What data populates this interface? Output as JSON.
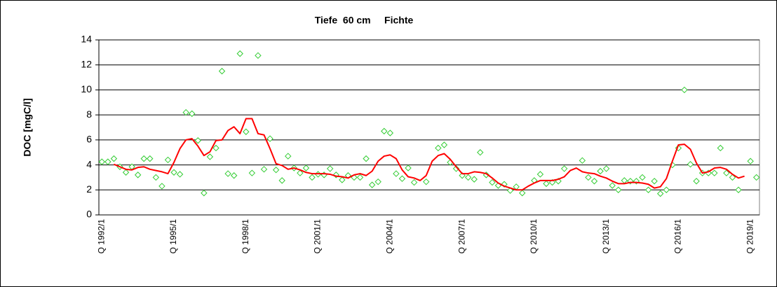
{
  "chart_data": {
    "type": "line",
    "title": "Tiefe  60 cm     Fichte",
    "y_label": "DOC [mgC/l]",
    "categories": [
      "Q 1992/1",
      null,
      null,
      null,
      null,
      null,
      null,
      null,
      null,
      null,
      null,
      null,
      "Q 1995/1",
      null,
      null,
      null,
      null,
      null,
      null,
      null,
      null,
      null,
      null,
      null,
      "Q 1998/1",
      null,
      null,
      null,
      null,
      null,
      null,
      null,
      null,
      null,
      null,
      null,
      "Q 2001/1",
      null,
      null,
      null,
      null,
      null,
      null,
      null,
      null,
      null,
      null,
      null,
      "Q 2004/1",
      null,
      null,
      null,
      null,
      null,
      null,
      null,
      null,
      null,
      null,
      null,
      "Q 2007/1",
      null,
      null,
      null,
      null,
      null,
      null,
      null,
      null,
      null,
      null,
      null,
      "Q 2010/1",
      null,
      null,
      null,
      null,
      null,
      null,
      null,
      null,
      null,
      null,
      null,
      "Q 2013/1",
      null,
      null,
      null,
      null,
      null,
      null,
      null,
      null,
      null,
      null,
      null,
      "Q 2016/1",
      null,
      null,
      null,
      null,
      null,
      null,
      null,
      null,
      null,
      null,
      null,
      "Q 2019/1",
      null
    ],
    "series": [
      {
        "type": "scatter",
        "color": "#33cc33",
        "values": [
          4.25,
          4.25,
          4.5,
          3.85,
          3.4,
          3.85,
          3.2,
          4.5,
          4.5,
          3.0,
          2.3,
          4.4,
          3.4,
          3.25,
          8.2,
          8.1,
          5.95,
          1.75,
          4.65,
          5.35,
          11.5,
          3.3,
          3.15,
          12.9,
          6.65,
          3.35,
          12.75,
          3.65,
          6.1,
          3.6,
          2.75,
          4.7,
          3.75,
          3.35,
          3.75,
          3.0,
          3.25,
          3.2,
          3.7,
          3.2,
          2.8,
          3.15,
          3.0,
          3.0,
          4.5,
          2.4,
          2.65,
          6.7,
          6.55,
          3.3,
          2.9,
          3.75,
          2.6,
          null,
          2.65,
          null,
          5.35,
          5.6,
          4.2,
          3.7,
          3.15,
          3.0,
          2.85,
          5.0,
          3.2,
          2.6,
          2.35,
          2.45,
          1.95,
          2.25,
          1.75,
          null,
          2.75,
          3.25,
          2.5,
          2.6,
          2.7,
          3.7,
          null,
          null,
          4.35,
          3.0,
          2.7,
          3.5,
          3.7,
          2.35,
          2.0,
          2.75,
          2.7,
          2.7,
          3.0,
          2.0,
          2.7,
          1.7,
          2.0,
          4.0,
          5.35,
          10.0,
          4.05,
          2.7,
          3.35,
          3.35,
          3.35,
          5.35,
          3.35,
          3.0,
          2.0,
          null,
          4.3,
          3.0
        ]
      },
      {
        "type": "line",
        "color": "#ff0000",
        "values": [
          null,
          null,
          4.05,
          3.85,
          3.65,
          3.6,
          3.8,
          3.85,
          3.65,
          3.55,
          3.45,
          3.3,
          4.2,
          5.3,
          6.0,
          6.1,
          5.5,
          4.75,
          5.05,
          5.95,
          6.0,
          6.75,
          7.05,
          6.5,
          7.7,
          7.7,
          6.5,
          6.4,
          5.3,
          4.1,
          3.95,
          3.65,
          3.75,
          3.6,
          3.4,
          3.3,
          3.3,
          3.3,
          3.25,
          3.1,
          3.05,
          2.95,
          3.2,
          3.3,
          3.15,
          3.5,
          4.3,
          4.7,
          4.8,
          4.5,
          3.6,
          3.05,
          2.95,
          2.75,
          3.15,
          4.3,
          4.75,
          4.9,
          4.45,
          3.85,
          3.3,
          3.3,
          3.45,
          3.4,
          3.3,
          2.95,
          2.55,
          2.3,
          2.15,
          2.0,
          2.0,
          2.3,
          2.55,
          2.75,
          2.75,
          2.75,
          2.85,
          3.05,
          3.55,
          3.75,
          3.45,
          3.35,
          3.3,
          3.1,
          2.95,
          2.7,
          2.5,
          2.5,
          2.6,
          2.6,
          2.55,
          2.45,
          2.15,
          2.25,
          2.9,
          4.3,
          5.6,
          5.65,
          5.25,
          4.15,
          3.35,
          3.45,
          3.75,
          3.8,
          3.65,
          3.25,
          2.95,
          3.1,
          null,
          null
        ]
      }
    ],
    "ylim": [
      0,
      14
    ],
    "yticks": [
      0,
      2,
      4,
      6,
      8,
      10,
      12,
      14
    ],
    "grid": true
  }
}
